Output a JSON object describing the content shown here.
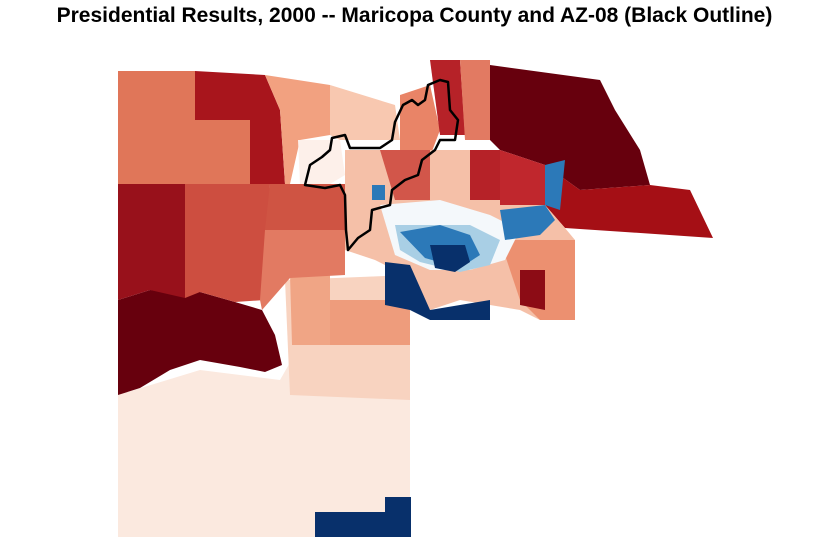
{
  "title": "Presidential Results, 2000 -- Maricopa County and AZ-08 (Black Outline)",
  "map": {
    "type": "choropleth",
    "outlined_region": "AZ-08",
    "outline_color": "#000000",
    "color_scale": {
      "dark_red": "#67000d",
      "red": "#a50f15",
      "medium_red": "#cb4a3c",
      "salmon": "#e2775f",
      "light_salmon": "#f4a582",
      "pale": "#fbe4d6",
      "near_white": "#fdf3ee",
      "light_blue": "#9ecae1",
      "blue": "#3182bd",
      "dark_blue": "#08306b"
    }
  }
}
